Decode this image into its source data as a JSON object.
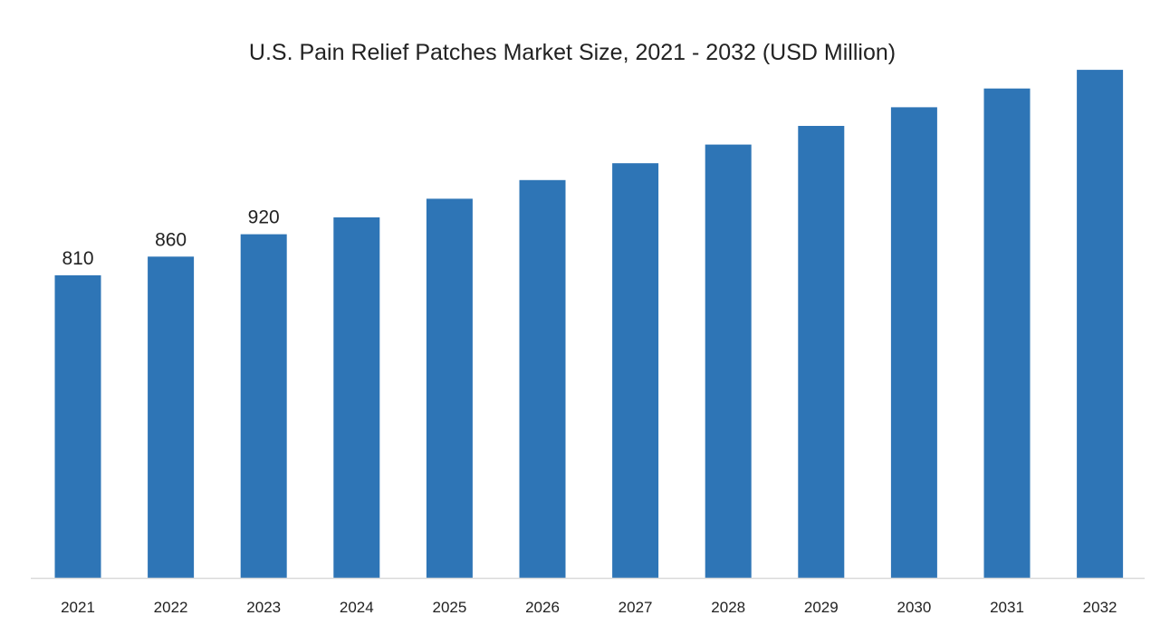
{
  "chart_data": {
    "type": "bar",
    "title": "U.S. Pain Relief Patches Market Size, 2021 - 2032 (USD Million)",
    "xlabel": "",
    "ylabel": "",
    "categories": [
      "2021",
      "2022",
      "2023",
      "2024",
      "2025",
      "2026",
      "2027",
      "2028",
      "2029",
      "2030",
      "2031",
      "2032"
    ],
    "values": [
      810,
      860,
      920,
      965,
      1015,
      1065,
      1110,
      1160,
      1210,
      1260,
      1310,
      1360
    ],
    "data_labels": [
      "810",
      "860",
      "920",
      "",
      "",
      "",
      "",
      "",
      "",
      "",
      "",
      ""
    ],
    "ylim": [
      0,
      1450
    ],
    "grid": false,
    "legend": "none",
    "colors": {
      "bar": "#2E75B6",
      "axis": "#D9D9D9",
      "text": "#222222"
    }
  }
}
